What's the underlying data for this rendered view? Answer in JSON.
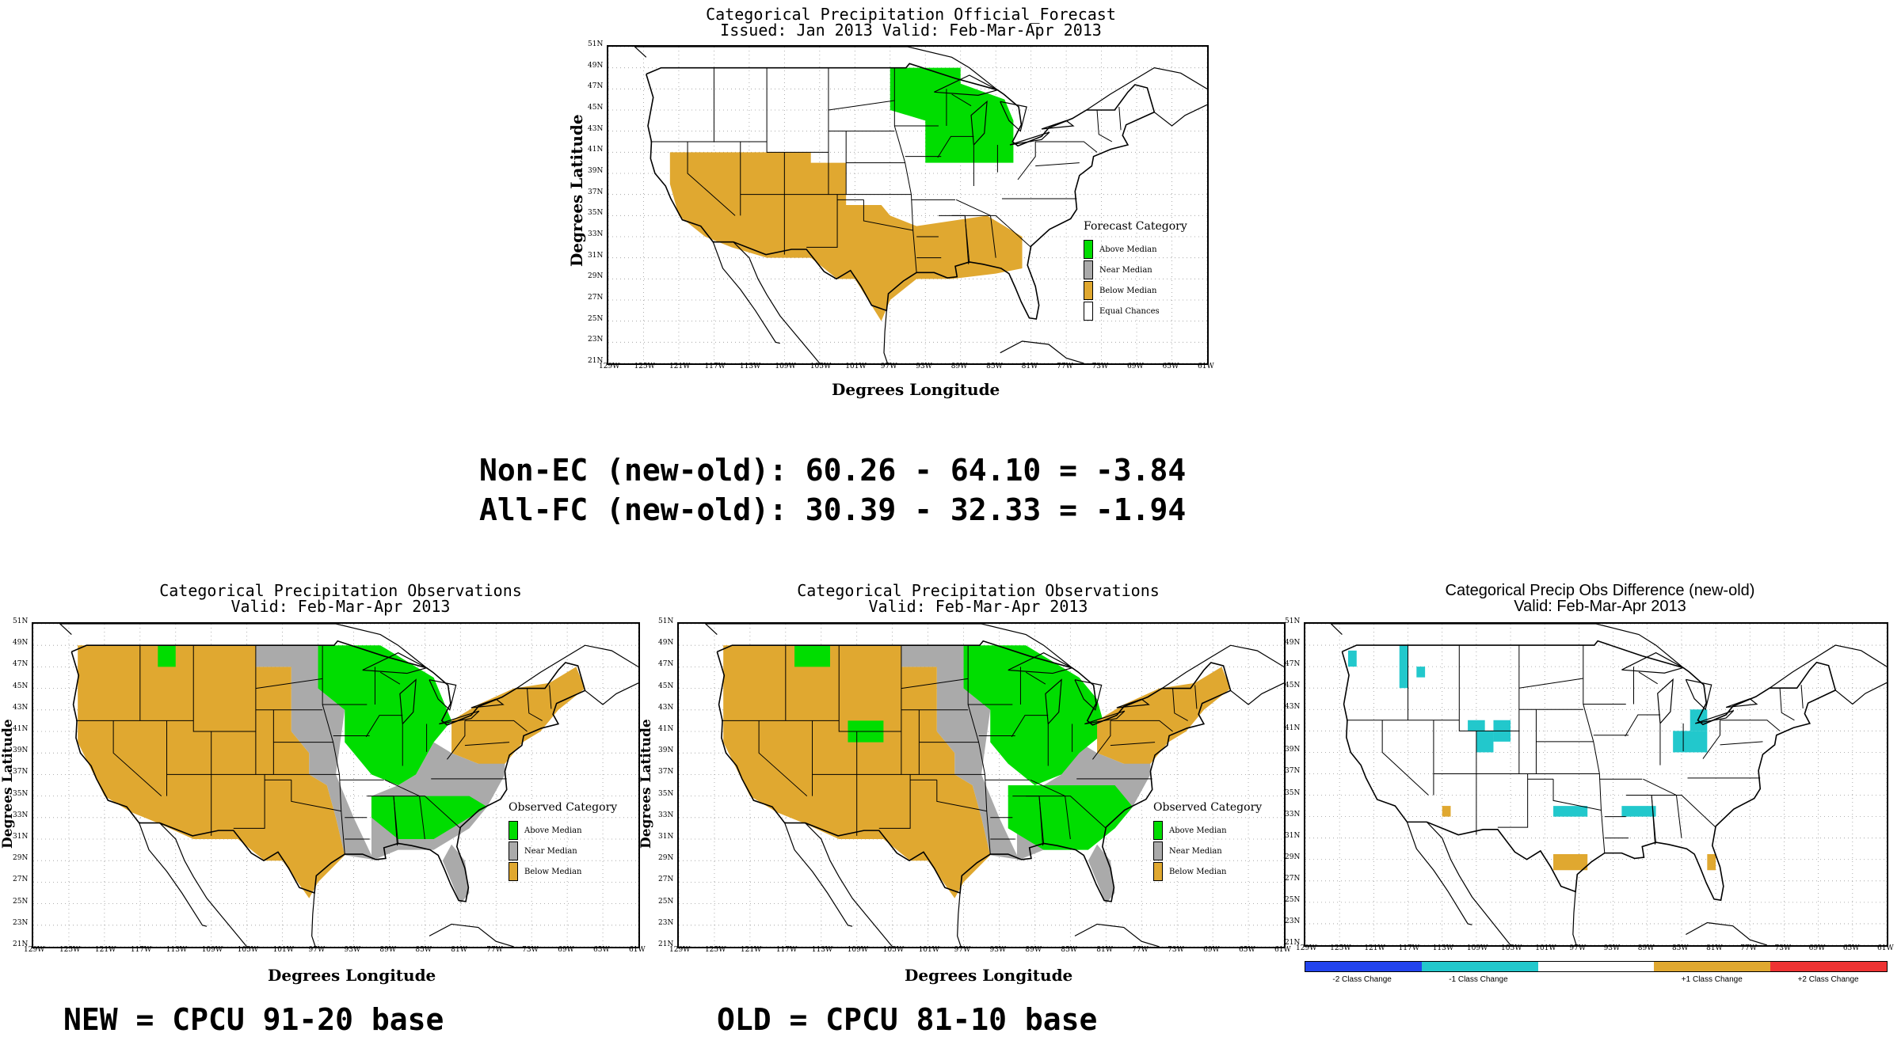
{
  "colors": {
    "above": "#00dd00",
    "near": "#aaaaaa",
    "below": "#e0a830",
    "ec": "#ffffff",
    "cyan": "#22c8cc",
    "blue": "#2244ee",
    "red": "#ee3333"
  },
  "lat_ticks": [
    "51N",
    "49N",
    "47N",
    "45N",
    "43N",
    "41N",
    "39N",
    "37N",
    "35N",
    "33N",
    "31N",
    "29N",
    "27N",
    "25N",
    "23N",
    "21N"
  ],
  "lon_ticks": [
    "129W",
    "125W",
    "121W",
    "117W",
    "113W",
    "109W",
    "105W",
    "101W",
    "97W",
    "93W",
    "89W",
    "85W",
    "81W",
    "77W",
    "73W",
    "69W",
    "65W",
    "61W"
  ],
  "forecast": {
    "title1": "Categorical Precipitation Official_Forecast",
    "title2": "Issued: Jan 2013 Valid: Feb-Mar-Apr 2013",
    "ylabel": "Degrees Latitude",
    "xlabel": "Degrees Longitude",
    "legend_title": "Forecast Category",
    "legend": [
      {
        "label": "Above Median",
        "color": "above"
      },
      {
        "label": "Near Median",
        "color": "near"
      },
      {
        "label": "Below Median",
        "color": "below"
      },
      {
        "label": "Equal Chances",
        "color": "ec"
      }
    ],
    "regions": [
      {
        "cat": "above",
        "shape": "upper-midwest-great-lakes"
      },
      {
        "cat": "below",
        "shape": "southwest-and-gulf-coast"
      }
    ]
  },
  "scores": {
    "line1": "Non-EC (new-old): 60.26 - 64.10 = -3.84",
    "line2": "All-FC (new-old): 30.39 - 32.33 = -1.94"
  },
  "obs_new": {
    "title1": "Categorical Precipitation Observations",
    "title2": "Valid: Feb-Mar-Apr 2013",
    "ylabel": "Degrees Latitude",
    "xlabel": "Degrees Longitude",
    "legend_title": "Observed Category",
    "legend": [
      {
        "label": "Above Median",
        "color": "above"
      },
      {
        "label": "Near Median",
        "color": "near"
      },
      {
        "label": "Below Median",
        "color": "below"
      }
    ],
    "caption": "NEW = CPCU 91-20 base"
  },
  "obs_old": {
    "title1": "Categorical Precipitation Observations",
    "title2": "Valid: Feb-Mar-Apr 2013",
    "ylabel": "Degrees Latitude",
    "xlabel": "Degrees Longitude",
    "legend_title": "Observed Category",
    "legend": [
      {
        "label": "Above Median",
        "color": "above"
      },
      {
        "label": "Near Median",
        "color": "near"
      },
      {
        "label": "Below Median",
        "color": "below"
      }
    ],
    "caption": "OLD = CPCU 81-10 base"
  },
  "diff": {
    "title1": "Categorical Precip Obs Difference (new-old)",
    "title2": "Valid: Feb-Mar-Apr 2013",
    "colorbar": [
      {
        "label": "-2 Class Change",
        "color": "blue"
      },
      {
        "label": "-1 Class Change",
        "color": "cyan"
      },
      {
        "label": "",
        "color": "ec"
      },
      {
        "label": "+1 Class Change",
        "color": "below"
      },
      {
        "label": "+2 Class Change",
        "color": "red"
      }
    ]
  }
}
